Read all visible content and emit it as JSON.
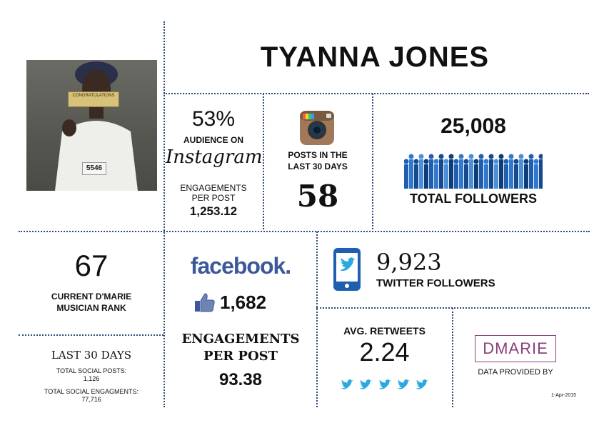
{
  "name": "TYANNA JONES",
  "photo": {
    "bib_number": "5546",
    "sign_text": "CONGRATULATIONS"
  },
  "instagram": {
    "audience_pct": "53%",
    "audience_label": "AUDIENCE ON",
    "logo_text": "Instagram",
    "engagements_label_1": "ENGAGEMENTS",
    "engagements_label_2": "PER POST",
    "engagements_value": "1,253.12",
    "posts_label_1": "POSTS IN THE",
    "posts_label_2": "LAST 30 DAYS",
    "posts_value": "58"
  },
  "followers": {
    "total": "25,008",
    "label": "TOTAL FOLLOWERS",
    "bar_color": "#1f5fb0"
  },
  "rank": {
    "value": "67",
    "label_1": "CURRENT D'MARIE",
    "label_2": "MUSICIAN RANK"
  },
  "last30": {
    "title": "LAST 30 DAYS",
    "posts_label": "TOTAL SOCIAL POSTS:",
    "posts_value": "1,126",
    "engagements_label": "TOTAL SOCIAL ENGAGMENTS:",
    "engagements_value": "77,716"
  },
  "facebook": {
    "logo_text": "facebook.",
    "likes": "1,682",
    "engagements_label_1": "ENGAGEMENTS",
    "engagements_label_2": "PER POST",
    "engagements_value": "93.38",
    "brand_color": "#3b5998"
  },
  "twitter": {
    "followers": "9,923",
    "followers_label": "TWITTER FOLLOWERS",
    "retweets_label": "AVG. RETWEETS",
    "retweets_value": "2.24",
    "brand_color": "#2aa9e0"
  },
  "dmarie": {
    "logo_text": "DMARIE",
    "provided_by": "DATA PROVIDED BY",
    "date": "1-Apr-2015",
    "logo_color": "#8a3f7a"
  }
}
